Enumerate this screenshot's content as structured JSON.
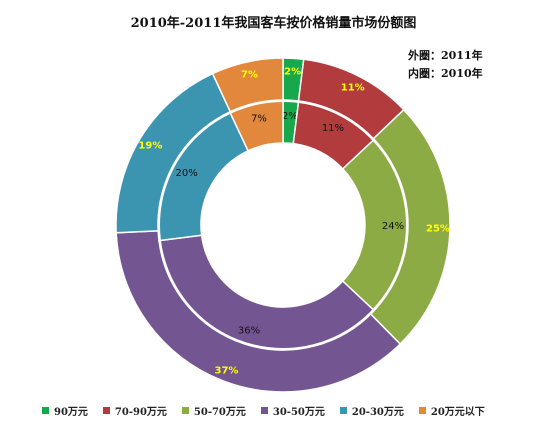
{
  "chart_data": {
    "type": "doughnut",
    "title": "2010年-2011年我国客车按价格销量市场份额图",
    "notes": {
      "outer": "外圈：2011年",
      "inner": "内圈：2010年"
    },
    "categories": [
      "90万元",
      "70-90万元",
      "50-70万元",
      "30-50万元",
      "20-30万元",
      "20万元以下"
    ],
    "colors": [
      "#17a84b",
      "#b23b3d",
      "#8cab44",
      "#735691",
      "#3c95b0",
      "#e2883d"
    ],
    "series": [
      {
        "name": "2011年",
        "ring": "outer",
        "values": [
          2,
          11,
          25,
          37,
          19,
          7
        ],
        "labels": [
          "2%",
          "11%",
          "25%",
          "37%",
          "19%",
          "7%"
        ]
      },
      {
        "name": "2010年",
        "ring": "inner",
        "values": [
          2,
          11,
          24,
          36,
          20,
          7
        ],
        "labels": [
          "2%",
          "11%",
          "24%",
          "36%",
          "20%",
          "7%"
        ]
      }
    ],
    "legend_position": "bottom"
  }
}
